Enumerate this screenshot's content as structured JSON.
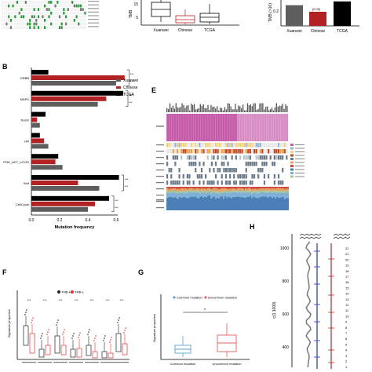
{
  "panels": {
    "B": {
      "letter": "B",
      "xlabel": "Mutation frequency",
      "x_ticks": [
        "0.0",
        "0.2",
        "0.4",
        "0.6"
      ],
      "stars": "***",
      "legend": [
        "Xuanwei",
        "Chinese",
        "TCGA"
      ]
    },
    "E": {
      "letter": "E"
    },
    "F": {
      "letter": "F",
      "ylabel": "Signature proportion",
      "legend": [
        "TMB-H",
        "TMB-L"
      ],
      "sig": "***"
    },
    "G": {
      "letter": "G",
      "ylabel": "Signature proportion",
      "legend": [
        "Common mutation",
        "Uncommon mutation"
      ],
      "xlabels": [
        "Common mutation",
        "Uncommon mutation"
      ],
      "sig": "*"
    },
    "H": {
      "letter": "H",
      "ylabel": "c(1:1000)",
      "y_ticks": [
        "1000",
        "800",
        "600",
        "400"
      ],
      "chrom_labels": [
        "22",
        "21",
        "20",
        "19",
        "18",
        "17",
        "16",
        "15",
        "14",
        "13",
        "12",
        "11",
        "10",
        "9",
        "8",
        "7",
        "6",
        "5",
        "4",
        "3",
        "2",
        "1"
      ]
    },
    "A_partial": {
      "ylabel": "TMB",
      "xlabels": [
        "Xuanwei",
        "Chinese",
        "TCGA"
      ],
      "ticks": [
        "15",
        "10",
        "5",
        "0"
      ]
    },
    "C_partial": {
      "ylabel": "TMB (>10)",
      "xlabels": [
        "Xuanwei",
        "Chinese",
        "TCGA"
      ],
      "pval": "(0.05)",
      "ticks": [
        "0.2",
        "0.1"
      ]
    }
  },
  "colors": {
    "xuanwei": "#5e5e5e",
    "chinese": "#b22222",
    "tcga": "#000000",
    "common": "#5aa0d0",
    "uncommon": "#e06060"
  },
  "chart_data": [
    {
      "type": "bar",
      "orientation": "horizontal",
      "categories": [
        "ERBB",
        "MAPK",
        "Notch",
        "HR",
        "PI3K_AKT_mTOR",
        "Wnt",
        "CellCycle"
      ],
      "xlabel": "Mutation frequency",
      "xlim": [
        0,
        0.7
      ],
      "series": [
        {
          "name": "Xuanwei",
          "values": [
            0.6,
            0.47,
            0.06,
            0.12,
            0.22,
            0.48,
            0.4
          ]
        },
        {
          "name": "Chinese",
          "values": [
            0.66,
            0.53,
            0.04,
            0.09,
            0.17,
            0.33,
            0.45
          ]
        },
        {
          "name": "TCGA",
          "values": [
            0.12,
            0.65,
            0.1,
            0.06,
            0.19,
            0.62,
            0.55
          ]
        }
      ]
    },
    {
      "type": "bar",
      "categories": [
        "Xuanwei",
        "Chinese",
        "TCGA"
      ],
      "values": [
        0.22,
        0.15,
        0.26
      ]
    }
  ]
}
